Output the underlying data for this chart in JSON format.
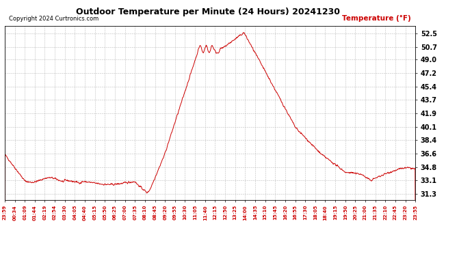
{
  "title": "Outdoor Temperature per Minute (24 Hours) 20241230",
  "copyright": "Copyright 2024 Curtronics.com",
  "legend_label": "Temperature (°F)",
  "line_color": "#cc0000",
  "background_color": "#ffffff",
  "grid_color": "#aaaaaa",
  "yticks": [
    31.3,
    33.1,
    34.8,
    36.6,
    38.4,
    40.1,
    41.9,
    43.7,
    45.4,
    47.2,
    49.0,
    50.7,
    52.5
  ],
  "ylim": [
    30.5,
    53.5
  ],
  "x_labels": [
    "23:59",
    "00:34",
    "01:09",
    "01:44",
    "02:19",
    "02:54",
    "03:30",
    "04:05",
    "04:40",
    "05:15",
    "05:50",
    "06:25",
    "07:00",
    "07:35",
    "08:10",
    "08:45",
    "09:20",
    "09:55",
    "10:30",
    "11:05",
    "11:40",
    "12:15",
    "12:50",
    "13:25",
    "14:00",
    "14:35",
    "15:10",
    "15:45",
    "16:20",
    "16:55",
    "17:30",
    "18:05",
    "18:40",
    "19:15",
    "19:50",
    "20:25",
    "21:00",
    "21:35",
    "22:10",
    "22:45",
    "23:20",
    "23:55"
  ],
  "figsize": [
    6.9,
    3.75
  ],
  "dpi": 100
}
